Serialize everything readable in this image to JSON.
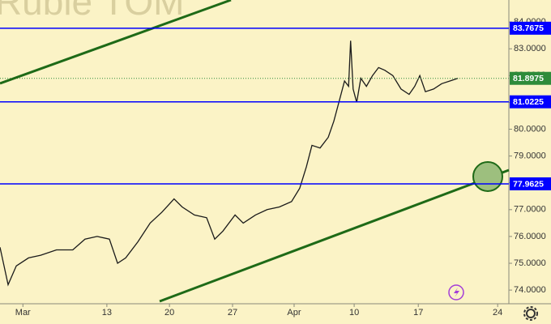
{
  "chart_data": {
    "type": "line",
    "watermark": "an Ruble TOM",
    "x": [
      0,
      1.6,
      3.2,
      5.6,
      8,
      11.1,
      14.3,
      16.7,
      19.1,
      21.5,
      23.1,
      24.7,
      27.1,
      29.5,
      31.8,
      34.2,
      35.8,
      38.2,
      40.6,
      42.2,
      43.8,
      46.2,
      47.8,
      50.2,
      52.5,
      54.9,
      57.3,
      58.9,
      60.2,
      61.3,
      62.9,
      64.5,
      65.6,
      66.6,
      67.7,
      68.5,
      68.9,
      69.4,
      70.1,
      70.9,
      72,
      73.2,
      74.4,
      75.6,
      77.2,
      78.8,
      80.4,
      81.5,
      82.5,
      83.6,
      85.2,
      86.8,
      88.4,
      90
    ],
    "series": [
      {
        "color": "#1a1a1a",
        "values": [
          75.6,
          74.2,
          74.9,
          75.2,
          75.3,
          75.5,
          75.5,
          75.9,
          76.0,
          75.9,
          75.0,
          75.2,
          75.8,
          76.5,
          76.9,
          77.4,
          77.1,
          76.8,
          76.7,
          75.9,
          76.2,
          76.8,
          76.5,
          76.8,
          77.0,
          77.1,
          77.3,
          77.8,
          78.6,
          79.4,
          79.3,
          79.7,
          80.3,
          81.0,
          81.8,
          81.6,
          83.3,
          81.5,
          81.0,
          81.9,
          81.6,
          82.0,
          82.3,
          82.2,
          82.0,
          81.5,
          81.3,
          81.6,
          82.0,
          81.4,
          81.5,
          81.7,
          81.8,
          81.9
        ]
      }
    ],
    "xlim": [
      0,
      100
    ],
    "xticks": [
      {
        "value": 4.5,
        "label": "Mar"
      },
      {
        "value": 21,
        "label": "13"
      },
      {
        "value": 33.3,
        "label": "20"
      },
      {
        "value": 45.7,
        "label": "27"
      },
      {
        "value": 57.8,
        "label": "Apr"
      },
      {
        "value": 69.6,
        "label": "10"
      },
      {
        "value": 82.2,
        "label": "17"
      },
      {
        "value": 97.8,
        "label": "24"
      }
    ],
    "ylim": [
      73.49,
      84.82
    ],
    "yticks": [
      {
        "value": 74,
        "label": "74.0000"
      },
      {
        "value": 75,
        "label": "75.0000"
      },
      {
        "value": 76,
        "label": "76.0000"
      },
      {
        "value": 77,
        "label": "77.0000"
      },
      {
        "value": 78,
        "label": "78.0000"
      },
      {
        "value": 79,
        "label": "79.0000"
      },
      {
        "value": 80,
        "label": "80.0000"
      },
      {
        "value": 81,
        "label": "81.0000"
      },
      {
        "value": 82,
        "label": "82.0000"
      },
      {
        "value": 83,
        "label": "83.0000"
      },
      {
        "value": 84,
        "label": "84.0000"
      }
    ],
    "levels": [
      {
        "value": 83.7675,
        "color": "#0000ff"
      },
      {
        "value": 81.0225,
        "color": "#0000ff"
      },
      {
        "value": 77.9625,
        "color": "#0000ff"
      }
    ],
    "last_price": {
      "value": 81.8975,
      "color": "#2e8b3a"
    },
    "grid": false
  }
}
